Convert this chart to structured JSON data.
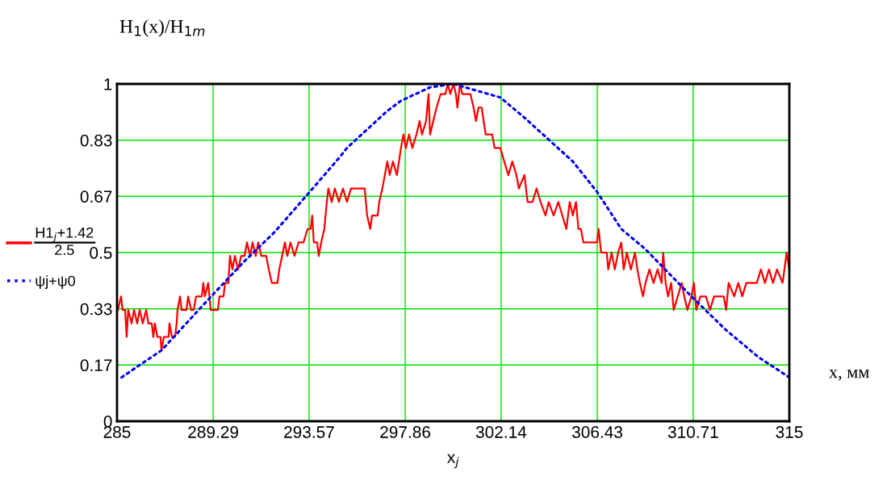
{
  "chart_data": {
    "type": "line",
    "title": "H$_{1}$(x)/H$_{1m}$",
    "xlabel": "x$_{j}$",
    "annotations": [
      "x, мм"
    ],
    "xlim": [
      285,
      315
    ],
    "xticks": [
      285,
      289.29,
      293.57,
      297.86,
      302.14,
      306.43,
      310.71,
      315
    ],
    "ylim": [
      0,
      1
    ],
    "yticks": [
      0,
      {
        "value": 0.1667,
        "label": "0.17"
      },
      {
        "value": 0.3333,
        "label": "0.33"
      },
      0.5,
      {
        "value": 0.6667,
        "label": "0.67"
      },
      {
        "value": 0.8333,
        "label": "0.83"
      },
      1
    ],
    "grid": true,
    "legend": "left",
    "marker": "none",
    "series": [
      {
        "name": "H1$_{j}$+1.42\n2.5",
        "color": "#ff0000",
        "line_style": "solid",
        "x": [
          285.04,
          285.18,
          285.25,
          285.36,
          285.43,
          285.5,
          285.65,
          285.76,
          285.9,
          286.01,
          286.15,
          286.3,
          286.4,
          286.55,
          286.62,
          286.69,
          286.8,
          286.94,
          286.98,
          287.09,
          287.3,
          287.34,
          287.45,
          287.59,
          287.66,
          287.7,
          287.81,
          287.88,
          288.1,
          288.17,
          288.31,
          288.42,
          288.53,
          288.64,
          288.78,
          288.85,
          288.92,
          289.07,
          289.18,
          289.5,
          289.57,
          289.75,
          289.82,
          289.97,
          290.04,
          290.15,
          290.26,
          290.4,
          290.54,
          290.69,
          290.8,
          290.94,
          291.05,
          291.19,
          291.3,
          291.44,
          291.66,
          291.77,
          291.91,
          292.16,
          292.24,
          292.49,
          292.6,
          292.74,
          292.92,
          293.1,
          293.32,
          293.5,
          293.64,
          293.71,
          293.78,
          293.93,
          294.0,
          294.11,
          294.25,
          294.36,
          294.43,
          294.58,
          294.72,
          294.9,
          295.08,
          295.26,
          295.44,
          296.05,
          296.16,
          296.3,
          296.38,
          296.63,
          296.7,
          296.84,
          296.95,
          297.06,
          297.17,
          297.31,
          297.49,
          297.67,
          297.78,
          297.89,
          298.03,
          298.18,
          298.36,
          298.5,
          298.61,
          298.79,
          298.9,
          298.97,
          299.11,
          299.26,
          299.44,
          299.65,
          299.76,
          299.87,
          300.01,
          300.12,
          300.19,
          300.3,
          300.41,
          300.77,
          300.91,
          301.02,
          301.13,
          301.27,
          301.45,
          301.74,
          301.85,
          302.1,
          302.28,
          302.46,
          302.64,
          302.82,
          302.93,
          303.18,
          303.32,
          303.54,
          303.72,
          303.9,
          304.12,
          304.26,
          304.48,
          304.69,
          304.87,
          305.05,
          305.2,
          305.34,
          305.48,
          305.59,
          305.7,
          305.81,
          306.42,
          306.49,
          306.6,
          306.85,
          306.92,
          307.07,
          307.21,
          307.36,
          307.5,
          307.61,
          307.75,
          307.93,
          308.11,
          308.22,
          308.33,
          308.47,
          308.58,
          308.76,
          308.94,
          309.12,
          309.3,
          309.37,
          309.48,
          309.59,
          309.73,
          309.84,
          310.02,
          310.2,
          310.31,
          310.45,
          310.63,
          310.74,
          310.85,
          311.03,
          311.28,
          311.46,
          311.64,
          312.07,
          312.18,
          312.29,
          312.54,
          312.72,
          312.9,
          313.08,
          313.55,
          313.73,
          313.91,
          314.09,
          314.27,
          314.45,
          314.7,
          314.88,
          315.0
        ],
        "values": [
          0.33,
          0.37,
          0.33,
          0.33,
          0.25,
          0.33,
          0.29,
          0.33,
          0.29,
          0.33,
          0.29,
          0.33,
          0.29,
          0.29,
          0.25,
          0.29,
          0.25,
          0.25,
          0.21,
          0.25,
          0.25,
          0.29,
          0.25,
          0.25,
          0.29,
          0.33,
          0.37,
          0.33,
          0.33,
          0.37,
          0.33,
          0.33,
          0.37,
          0.37,
          0.37,
          0.41,
          0.37,
          0.41,
          0.33,
          0.33,
          0.37,
          0.37,
          0.41,
          0.41,
          0.49,
          0.45,
          0.49,
          0.45,
          0.49,
          0.49,
          0.53,
          0.49,
          0.53,
          0.49,
          0.53,
          0.49,
          0.49,
          0.45,
          0.41,
          0.41,
          0.45,
          0.53,
          0.49,
          0.53,
          0.49,
          0.53,
          0.53,
          0.57,
          0.57,
          0.61,
          0.53,
          0.53,
          0.49,
          0.53,
          0.57,
          0.65,
          0.69,
          0.65,
          0.69,
          0.65,
          0.69,
          0.65,
          0.69,
          0.69,
          0.61,
          0.57,
          0.61,
          0.61,
          0.65,
          0.69,
          0.73,
          0.77,
          0.73,
          0.77,
          0.73,
          0.81,
          0.85,
          0.81,
          0.85,
          0.81,
          0.85,
          0.89,
          0.85,
          0.89,
          0.97,
          0.85,
          0.89,
          0.93,
          0.97,
          0.97,
          1.0,
          0.97,
          1.0,
          0.97,
          0.93,
          1.0,
          0.97,
          0.97,
          0.93,
          0.89,
          0.93,
          0.93,
          0.85,
          0.85,
          0.81,
          0.81,
          0.77,
          0.73,
          0.77,
          0.73,
          0.69,
          0.73,
          0.65,
          0.65,
          0.69,
          0.65,
          0.61,
          0.65,
          0.61,
          0.65,
          0.61,
          0.57,
          0.65,
          0.61,
          0.65,
          0.57,
          0.57,
          0.53,
          0.53,
          0.57,
          0.5,
          0.5,
          0.45,
          0.5,
          0.45,
          0.5,
          0.53,
          0.45,
          0.5,
          0.45,
          0.5,
          0.45,
          0.41,
          0.37,
          0.41,
          0.45,
          0.41,
          0.45,
          0.41,
          0.5,
          0.41,
          0.37,
          0.41,
          0.33,
          0.37,
          0.41,
          0.37,
          0.33,
          0.37,
          0.41,
          0.33,
          0.37,
          0.37,
          0.33,
          0.37,
          0.37,
          0.33,
          0.41,
          0.37,
          0.41,
          0.37,
          0.41,
          0.41,
          0.45,
          0.41,
          0.45,
          0.41,
          0.45,
          0.41,
          0.5,
          0.45
        ]
      },
      {
        "name": "ψj+ψ0",
        "color": "#0000ff",
        "line_style": "dotted",
        "x": [
          285.2,
          286.98,
          288.92,
          290.62,
          292.02,
          293.6,
          294.9,
          295.26,
          297.06,
          297.67,
          298.97,
          300.0,
          302.1,
          303.18,
          305.34,
          306.42,
          307.5,
          308.58,
          310.63,
          312.18,
          313.62,
          315.0
        ],
        "values": [
          0.13,
          0.21,
          0.35,
          0.47,
          0.56,
          0.68,
          0.78,
          0.81,
          0.92,
          0.95,
          0.99,
          1.0,
          0.96,
          0.9,
          0.77,
          0.68,
          0.57,
          0.51,
          0.37,
          0.27,
          0.19,
          0.13
        ]
      }
    ]
  }
}
